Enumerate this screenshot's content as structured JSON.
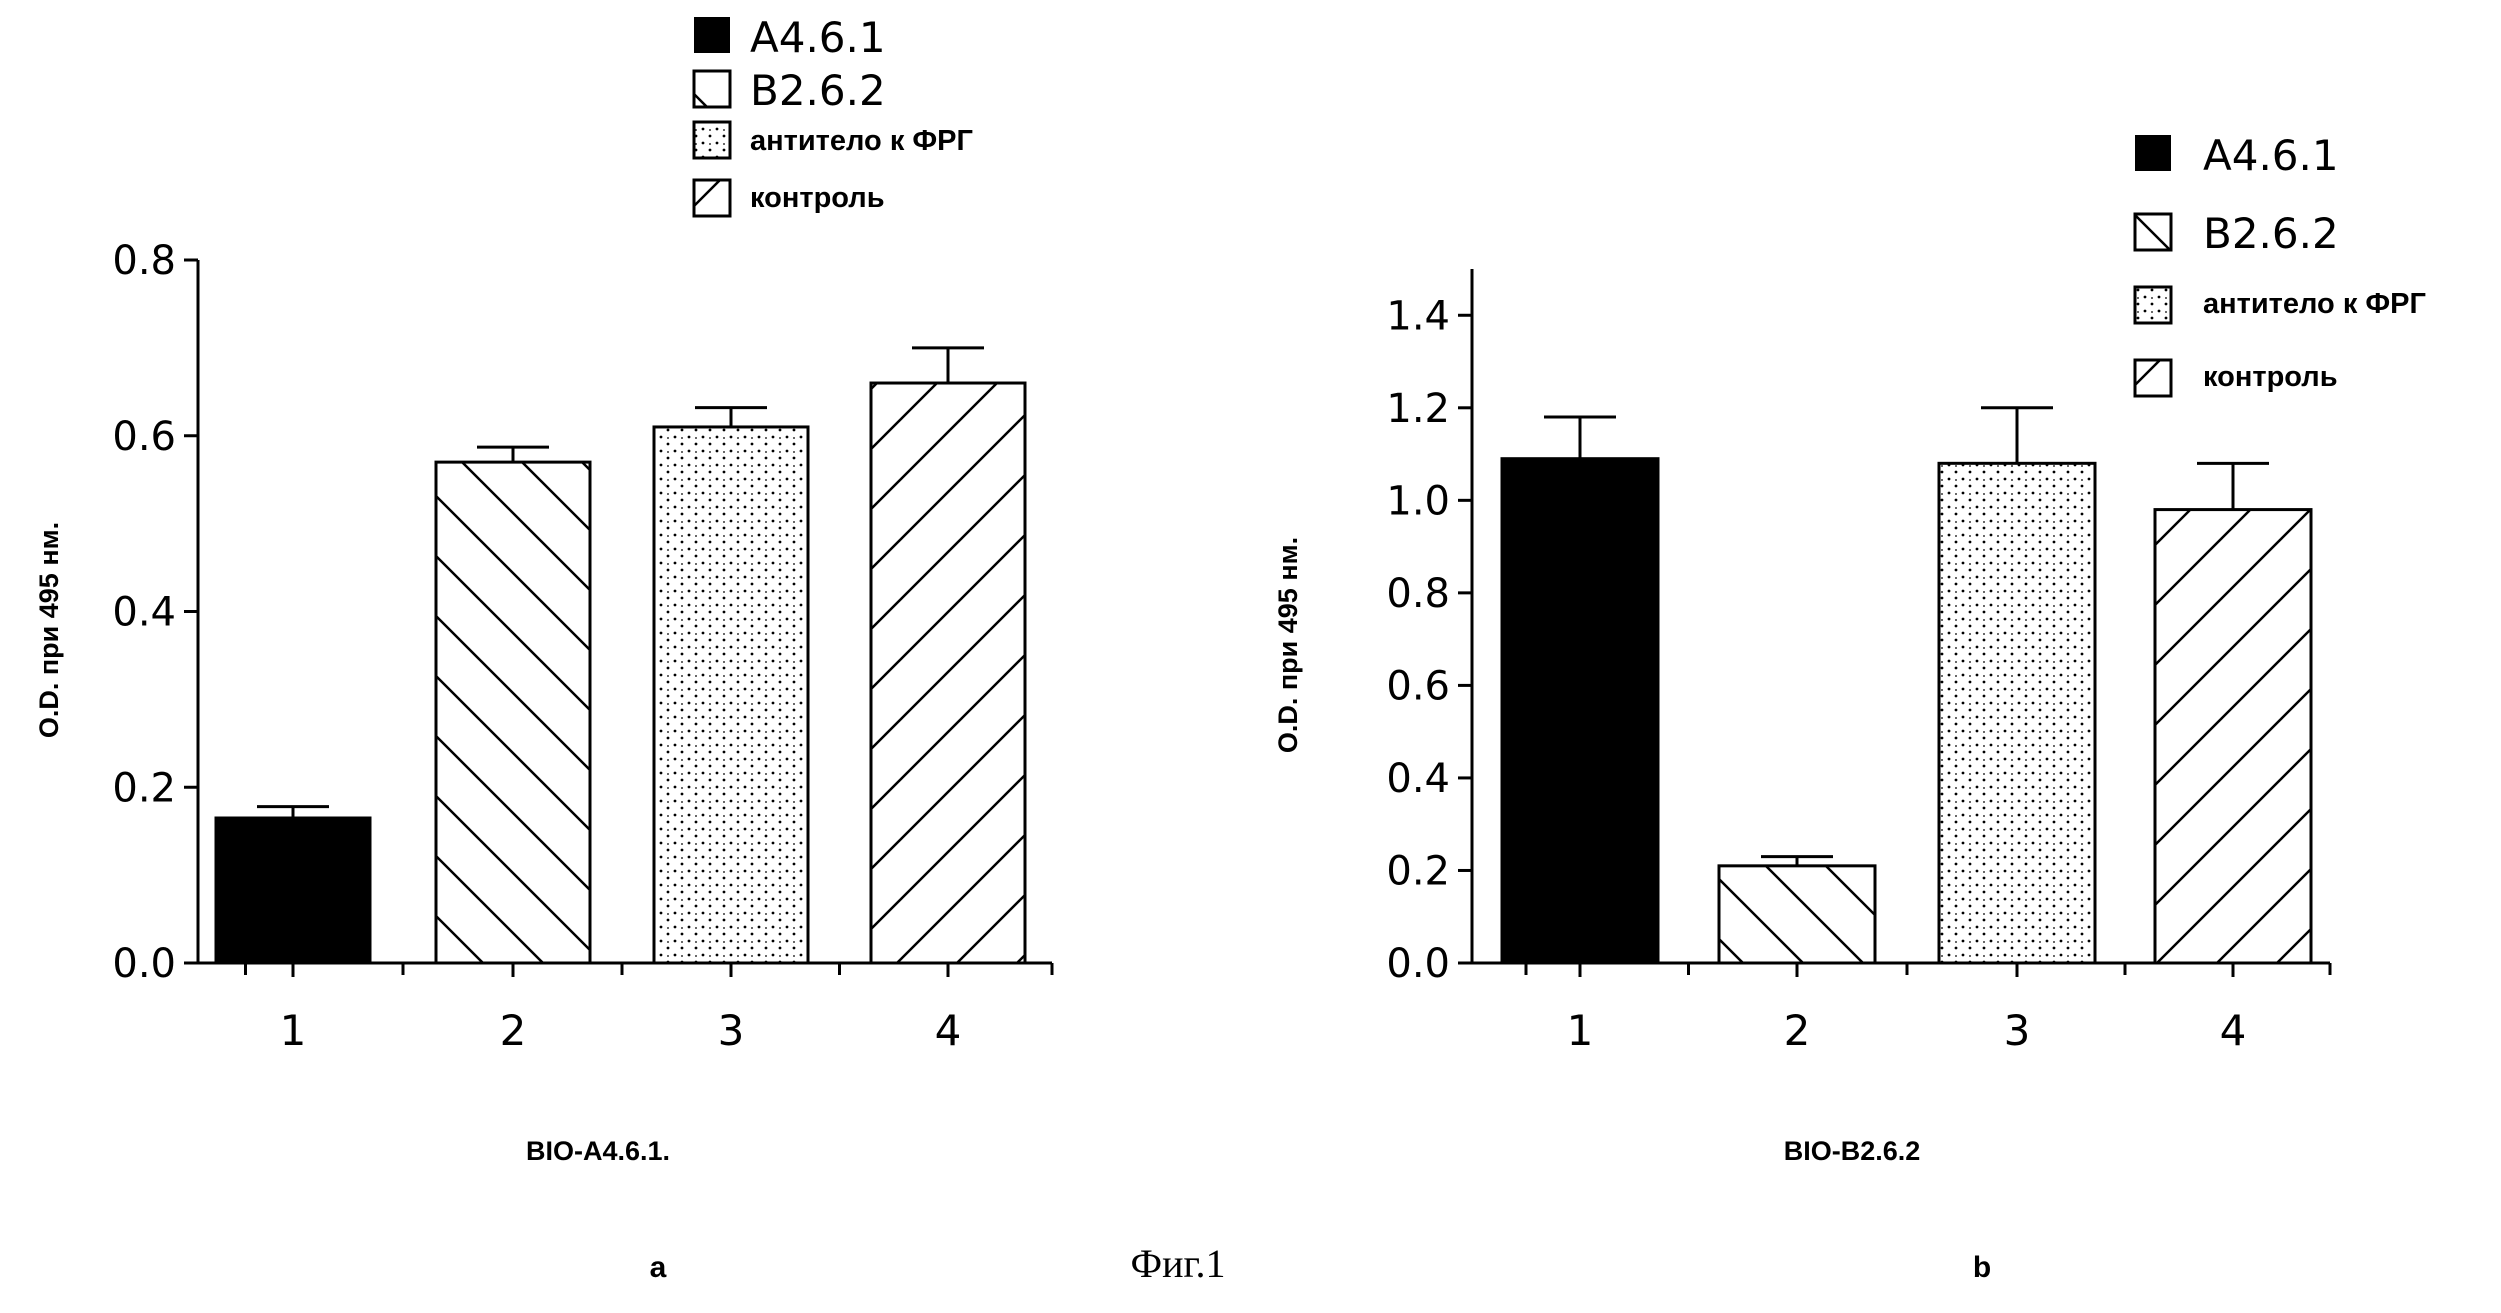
{
  "figure": {
    "caption": "Фиг.1"
  },
  "panels": [
    {
      "panel_label": "a",
      "legend": [
        "A4.6.1",
        "B2.6.2",
        "антитело к ФРГ",
        "контроль"
      ],
      "patterns": [
        "solid",
        "backslash",
        "dots",
        "slash"
      ],
      "colors": {
        "ink": "#000000",
        "background": "#ffffff"
      }
    },
    {
      "panel_label": "b",
      "legend": [
        "A4.6.1",
        "B2.6.2",
        "антитело к ФРГ",
        "контроль"
      ],
      "patterns": [
        "solid",
        "backslash",
        "dots",
        "slash"
      ],
      "colors": {
        "ink": "#000000",
        "background": "#ffffff"
      }
    }
  ],
  "chart_data": [
    {
      "type": "bar",
      "title": "",
      "xlabel": "BIO-A4.6.1.",
      "ylabel": "O.D. при 495 нм.",
      "categories": [
        "1",
        "2",
        "3",
        "4"
      ],
      "values": [
        0.165,
        0.57,
        0.61,
        0.66
      ],
      "error": [
        0.013,
        0.017,
        0.022,
        0.04
      ],
      "ylim": [
        0.0,
        0.8
      ],
      "yticks": [
        "0.0",
        "0.2",
        "0.4",
        "0.6",
        "0.8"
      ],
      "grid": false,
      "legend_position": "top"
    },
    {
      "type": "bar",
      "title": "",
      "xlabel": "BIO-B2.6.2",
      "ylabel": "O.D. при 495 нм.",
      "categories": [
        "1",
        "2",
        "3",
        "4"
      ],
      "values": [
        1.09,
        0.21,
        1.08,
        0.98
      ],
      "error": [
        0.09,
        0.02,
        0.12,
        0.1
      ],
      "ylim": [
        0.0,
        1.5
      ],
      "yticks": [
        "0.0",
        "0.2",
        "0.4",
        "0.6",
        "0.8",
        "1.0",
        "1.2",
        "1.4"
      ],
      "grid": false,
      "legend_position": "top-right"
    }
  ]
}
